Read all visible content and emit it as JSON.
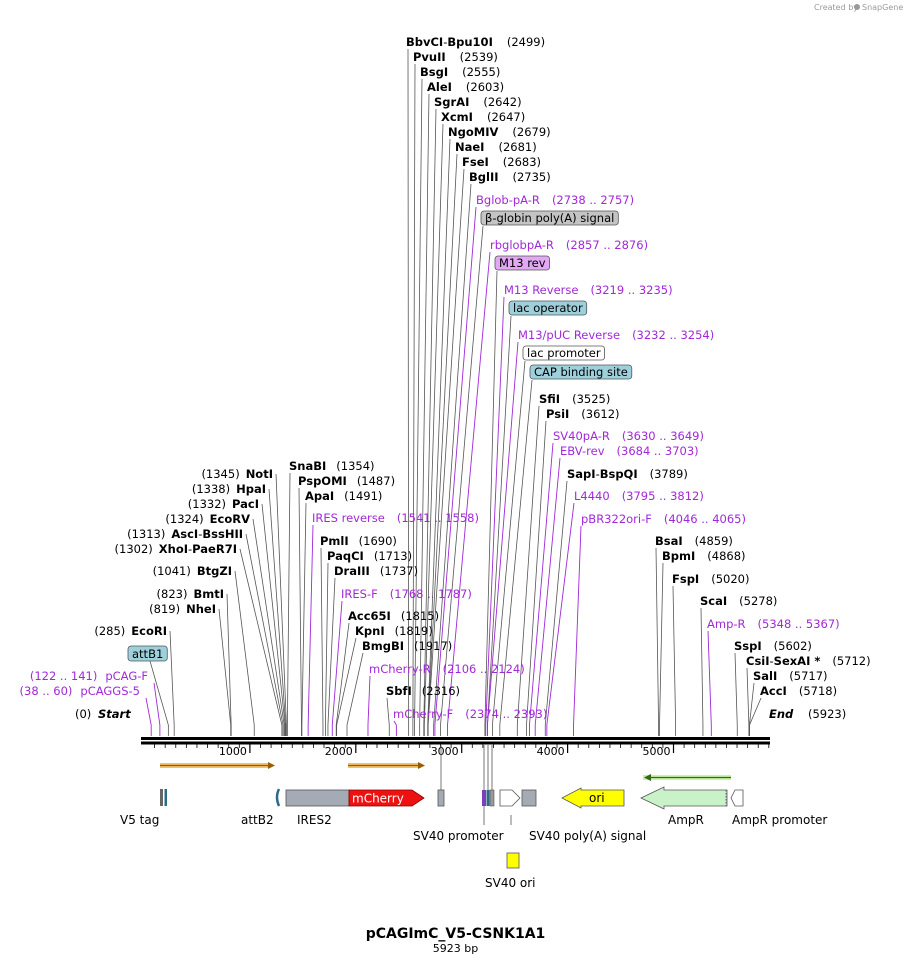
{
  "credit": {
    "text": "Created by",
    "brand": "SnapGene"
  },
  "plasmid": {
    "name": "pCAGImC_V5-CSNK1A1",
    "length_label": "5923 bp",
    "length": 5923
  },
  "ruler": {
    "ticks": [
      {
        "pos": 1000,
        "label": "1000"
      },
      {
        "pos": 2000,
        "label": "2000"
      },
      {
        "pos": 3000,
        "label": "3000"
      },
      {
        "pos": 4000,
        "label": "4000"
      },
      {
        "pos": 5000,
        "label": "5000"
      }
    ]
  },
  "ends": {
    "start_label": "Start",
    "start_pos": "(0)",
    "end_label": "End",
    "end_pos": "(5923)"
  },
  "top_sites": [
    {
      "name": "BbvCI",
      "name2": "Bpu10I",
      "sep": " - ",
      "pos": "(2499)",
      "site": 2499
    },
    {
      "name": "PvuII",
      "pos": "(2539)",
      "site": 2539
    },
    {
      "name": "BsgI",
      "pos": "(2555)",
      "site": 2555
    },
    {
      "name": "AleI",
      "pos": "(2603)",
      "site": 2603
    },
    {
      "name": "SgrAI",
      "pos": "(2642)",
      "site": 2642
    },
    {
      "name": "XcmI",
      "pos": "(2647)",
      "site": 2647
    },
    {
      "name": "NgoMIV",
      "pos": "(2679)",
      "site": 2679
    },
    {
      "name": "NaeI",
      "pos": "(2681)",
      "site": 2681
    },
    {
      "name": "FseI",
      "pos": "(2683)",
      "site": 2683
    },
    {
      "name": "BglII",
      "pos": "(2735)",
      "site": 2735
    }
  ],
  "mid_labels": [
    {
      "kind": "primer",
      "name": "Bglob-pA-R",
      "range": "(2738 .. 2757)",
      "site": 2747
    },
    {
      "kind": "box",
      "name": "β-globin poly(A) signal",
      "fill": "#c4c4c4",
      "site": 2800
    },
    {
      "kind": "primer",
      "name": "rbglobpA-R",
      "range": "(2857 .. 2876)",
      "site": 2866
    },
    {
      "kind": "box",
      "name": "M13 rev",
      "fill": "#e2a8f4",
      "site": 3219
    },
    {
      "kind": "primer",
      "name": "M13 Reverse",
      "range": "(3219 .. 3235)",
      "site": 3227
    },
    {
      "kind": "box",
      "name": "lac operator",
      "fill": "#9ed0dc",
      "site": 3243
    },
    {
      "kind": "primer",
      "name": "M13/pUC Reverse",
      "range": "(3232 .. 3254)",
      "site": 3243
    },
    {
      "kind": "box",
      "name": "lac promoter",
      "fill": "#ffffff",
      "site": 3290
    },
    {
      "kind": "box",
      "name": "CAP binding site",
      "fill": "#9ed0dc",
      "site": 3360
    },
    {
      "kind": "enzyme",
      "name": "SfiI",
      "pos": "(3525)",
      "site": 3525
    },
    {
      "kind": "enzyme",
      "name": "PsiI",
      "pos": "(3612)",
      "site": 3612
    },
    {
      "kind": "primer",
      "name": "SV40pA-R",
      "range": "(3630 .. 3649)",
      "site": 3640
    },
    {
      "kind": "primer",
      "name": "EBV-rev",
      "range": "(3684 .. 3703)",
      "site": 3694
    },
    {
      "kind": "enzyme",
      "name": "SapI",
      "name2": "BspQI",
      "sep": " - ",
      "pos": "(3789)",
      "site": 3789
    },
    {
      "kind": "primer",
      "name": "L4440",
      "range": "(3795 .. 3812)",
      "site": 3804
    },
    {
      "kind": "primer",
      "name": "pBR322ori-F",
      "range": "(4046 .. 4065)",
      "site": 4056
    }
  ],
  "left_sites": [
    {
      "pos": "(1345)",
      "name": "NotI",
      "site": 1345
    },
    {
      "pos": "(1338)",
      "name": "HpaI",
      "site": 1338
    },
    {
      "pos": "(1332)",
      "name": "PacI",
      "site": 1332
    },
    {
      "pos": "(1324)",
      "name": "EcoRV",
      "site": 1324
    },
    {
      "pos": "(1313)",
      "name": "AscI",
      "name2": "BssHII",
      "sep": " - ",
      "site": 1313
    },
    {
      "pos": "(1302)",
      "name": "XhoI",
      "name2": "PaeR7I",
      "sep": " - ",
      "site": 1302
    },
    {
      "pos": "(1041)",
      "name": "BtgZI",
      "site": 1041
    },
    {
      "pos": "(823)",
      "name": "BmtI",
      "site": 823
    },
    {
      "pos": "(819)",
      "name": "NheI",
      "site": 819
    },
    {
      "pos": "(285)",
      "name": "EcoRI",
      "site": 285
    }
  ],
  "left_primers": [
    {
      "range": "(122 .. 141)",
      "name": "pCAG-F",
      "site": 131
    },
    {
      "range": "(38 .. 60)",
      "name": "pCAGGS-5",
      "site": 49
    }
  ],
  "attb1": {
    "name": "attB1",
    "site": 230
  },
  "center_sites": [
    {
      "kind": "enzyme",
      "name": "SnaBI",
      "pos": "(1354)",
      "site": 1354
    },
    {
      "kind": "enzyme",
      "name": "PspOMI",
      "pos": "(1487)",
      "site": 1487
    },
    {
      "kind": "enzyme",
      "name": "ApaI",
      "pos": "(1491)",
      "site": 1491
    },
    {
      "kind": "primer",
      "name": "IRES reverse",
      "range": "(1541 .. 1558)",
      "site": 1550
    },
    {
      "kind": "enzyme",
      "name": "PmlI",
      "pos": "(1690)",
      "site": 1690
    },
    {
      "kind": "enzyme",
      "name": "PaqCI",
      "pos": "(1713)",
      "site": 1713
    },
    {
      "kind": "enzyme",
      "name": "DraIII",
      "pos": "(1737)",
      "site": 1737
    },
    {
      "kind": "primer",
      "name": "IRES-F",
      "range": "(1768 .. 1787)",
      "site": 1778
    },
    {
      "kind": "enzyme",
      "name": "Acc65I",
      "pos": "(1815)",
      "site": 1815
    },
    {
      "kind": "enzyme",
      "name": "KpnI",
      "pos": "(1819)",
      "site": 1819
    },
    {
      "kind": "enzyme",
      "name": "BmgBI",
      "pos": "(1917)",
      "site": 1917
    },
    {
      "kind": "primer",
      "name": "mCherry-R",
      "range": "(2106 .. 2124)",
      "site": 2115
    },
    {
      "kind": "enzyme",
      "name": "SbfI",
      "pos": "(2316)",
      "site": 2316
    },
    {
      "kind": "primer",
      "name": "mCherry-F",
      "range": "(2374 .. 2393)",
      "site": 2383
    }
  ],
  "right_sites": [
    {
      "kind": "enzyme",
      "name": "BsaI",
      "pos": "(4859)",
      "site": 4859
    },
    {
      "kind": "enzyme",
      "name": "BpmI",
      "pos": "(4868)",
      "site": 4868
    },
    {
      "kind": "enzyme",
      "name": "FspI",
      "pos": "(5020)",
      "site": 5020
    },
    {
      "kind": "enzyme",
      "name": "ScaI",
      "pos": "(5278)",
      "site": 5278
    },
    {
      "kind": "primer",
      "name": "Amp-R",
      "range": "(5348 .. 5367)",
      "site": 5357
    },
    {
      "kind": "enzyme",
      "name": "SspI",
      "pos": "(5602)",
      "site": 5602
    },
    {
      "kind": "enzyme",
      "name": "CsiI",
      "name2": "SexAI *",
      "sep": " - ",
      "pos": "(5712)",
      "site": 5712
    },
    {
      "kind": "enzyme",
      "name": "SalI",
      "pos": "(5717)",
      "site": 5717
    },
    {
      "kind": "enzyme",
      "name": "AccI",
      "pos": "(5718)",
      "site": 5718
    }
  ],
  "features": [
    {
      "name": "V5 tag"
    },
    {
      "name": "attB2"
    },
    {
      "name": "IRES2"
    },
    {
      "name": "mCherry"
    },
    {
      "name": "SV40 promoter"
    },
    {
      "name": "SV40 poly(A) signal"
    },
    {
      "name": "ori"
    },
    {
      "name": "AmpR"
    },
    {
      "name": "AmpR promoter"
    },
    {
      "name": "SV40 ori"
    }
  ]
}
